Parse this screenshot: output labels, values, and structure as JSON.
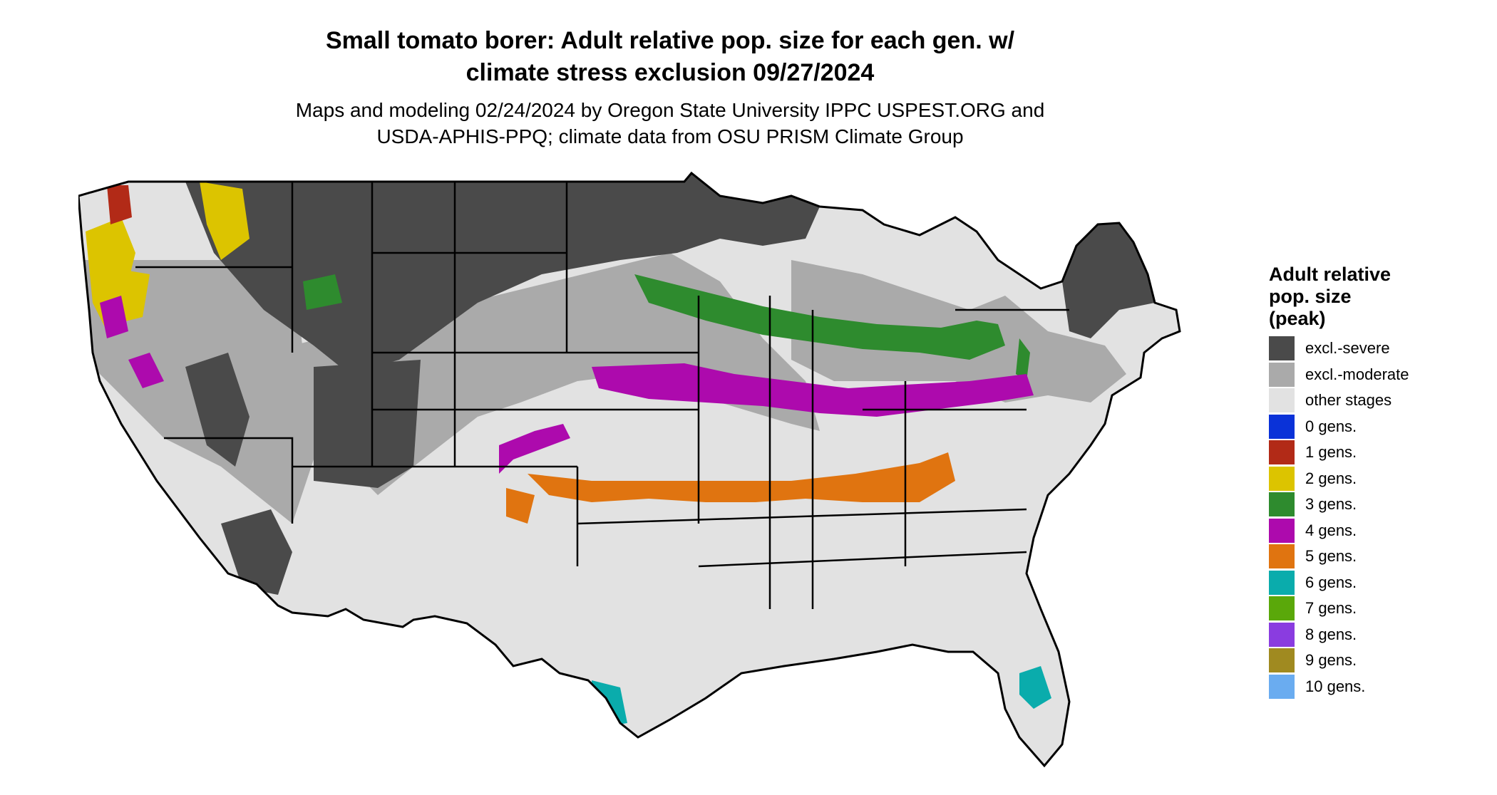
{
  "title_line1": "Small tomato borer: Adult relative pop. size for each gen. w/",
  "title_line2": "climate stress exclusion 09/27/2024",
  "subtitle_line1": "Maps and modeling 02/24/2024 by Oregon State University IPPC USPEST.ORG and",
  "subtitle_line2": "USDA-APHIS-PPQ; climate data from OSU PRISM Climate Group",
  "legend": {
    "title_line1": "Adult relative",
    "title_line2": "pop. size",
    "title_line3": "(peak)",
    "items": [
      {
        "label": "excl.-severe",
        "color": "#4a4a4a"
      },
      {
        "label": "excl.-moderate",
        "color": "#aaaaaa"
      },
      {
        "label": "other stages",
        "color": "#e2e2e2"
      },
      {
        "label": "0 gens.",
        "color": "#0a32d8"
      },
      {
        "label": "1 gens.",
        "color": "#b22a17"
      },
      {
        "label": "2 gens.",
        "color": "#dcc400"
      },
      {
        "label": "3 gens.",
        "color": "#2e8b2e"
      },
      {
        "label": "4 gens.",
        "color": "#ad0aad"
      },
      {
        "label": "5 gens.",
        "color": "#e07410"
      },
      {
        "label": "6 gens.",
        "color": "#0aacac"
      },
      {
        "label": "7 gens.",
        "color": "#5aa80a"
      },
      {
        "label": "8 gens.",
        "color": "#8a3ce0"
      },
      {
        "label": "9 gens.",
        "color": "#a08a20"
      },
      {
        "label": "10 gens.",
        "color": "#6aacf0"
      }
    ]
  }
}
